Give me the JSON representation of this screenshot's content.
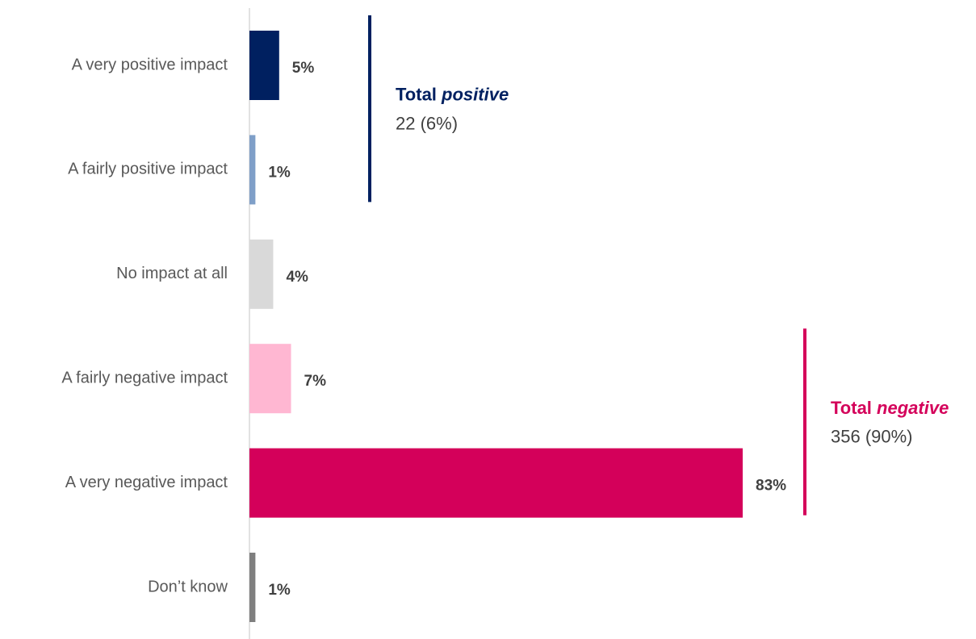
{
  "chart_data": {
    "type": "hbar",
    "categories": [
      "A very positive impact",
      "A fairly positive impact",
      "No impact at all",
      "A fairly negative impact",
      "A very negative impact",
      "Don’t know"
    ],
    "values": [
      5,
      1,
      4,
      7,
      83,
      1
    ],
    "value_labels": [
      "5%",
      "1%",
      "4%",
      "7%",
      "83%",
      "1%"
    ],
    "colors": [
      "#002060",
      "#7f9fc8",
      "#d9d9d9",
      "#ffb7d2",
      "#d4005a",
      "#7f7f7f"
    ],
    "annotations": [
      {
        "label": "Total",
        "emphasis": "positive",
        "detail": "22 (6%)",
        "color": "#002060",
        "from": 0,
        "to": 1
      },
      {
        "label": "Total",
        "emphasis": "negative",
        "detail": "356 (90%)",
        "color": "#d4005a",
        "from": 3,
        "to": 4
      }
    ]
  }
}
